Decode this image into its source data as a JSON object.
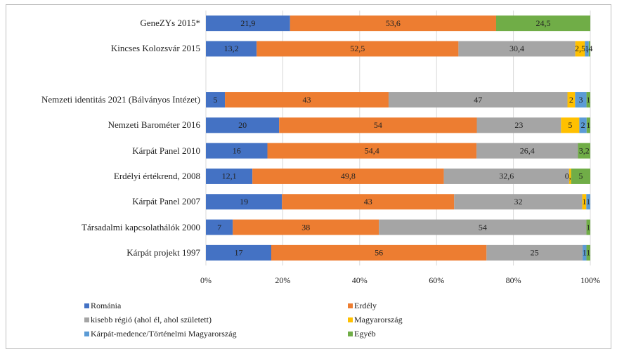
{
  "chart_data": {
    "type": "stacked_bar_100",
    "orientation": "horizontal",
    "categories": [
      "GeneZYs 2015*",
      "Kincses Kolozsvár 2015",
      null,
      "Nemzeti identitás 2021 (Bálványos Intézet)",
      "Nemzeti Barométer 2016",
      "Kárpát Panel 2010",
      "Erdélyi értékrend, 2008",
      "Kárpát Panel 2007",
      "Társadalmi kapcsolathálók 2000",
      "Kárpát projekt 1997"
    ],
    "series": [
      {
        "name": "Románia",
        "color": "#4472c4",
        "values": [
          21.9,
          13.2,
          null,
          5,
          20,
          16,
          12.1,
          19,
          7,
          17
        ],
        "value_labels": [
          "21,9",
          "13,2",
          null,
          "5",
          "20",
          "16",
          "12,1",
          "19",
          "7",
          "17"
        ]
      },
      {
        "name": "Erdély",
        "color": "#ed7d31",
        "values": [
          53.6,
          52.5,
          null,
          43,
          54,
          54.4,
          49.8,
          43,
          38,
          56
        ],
        "value_labels": [
          "53,6",
          "52,5",
          null,
          "43",
          "54",
          "54,4",
          "49,8",
          "43",
          "38",
          "56"
        ]
      },
      {
        "name": "kisebb régió (ahol él, ahol született)",
        "color": "#a5a5a5",
        "values": [
          null,
          30.4,
          null,
          47,
          23,
          26.4,
          32.6,
          32,
          54,
          25
        ],
        "value_labels": [
          null,
          "30,4",
          null,
          "47",
          "23",
          "26,4",
          "32,6",
          "32",
          "54",
          "25"
        ]
      },
      {
        "name": "Magyarország",
        "color": "#ffc000",
        "values": [
          null,
          2.5,
          null,
          2,
          5,
          null,
          0.5,
          1,
          null,
          null
        ],
        "value_labels": [
          null,
          "2,5",
          null,
          "2",
          "5",
          null,
          "0,5",
          "1",
          null,
          null
        ]
      },
      {
        "name": "Kárpát-medence/Történelmi Magyarország",
        "color": "#5b9bd5",
        "values": [
          null,
          1,
          null,
          3,
          2,
          null,
          null,
          1,
          null,
          1
        ],
        "value_labels": [
          null,
          "1",
          null,
          "3",
          "2",
          null,
          null,
          "1",
          null,
          "1"
        ]
      },
      {
        "name": "Egyéb",
        "color": "#70ad47",
        "values": [
          24.5,
          0.4,
          null,
          1,
          1,
          3.2,
          5,
          null,
          1,
          1
        ],
        "value_labels": [
          "24,5",
          ",4",
          null,
          "1",
          "1",
          "3,2",
          "5",
          null,
          "1",
          "1"
        ]
      }
    ],
    "xlim": [
      0,
      100
    ],
    "xticks": [
      {
        "value": 0,
        "label": "0%"
      },
      {
        "value": 20,
        "label": "20%"
      },
      {
        "value": 40,
        "label": "40%"
      },
      {
        "value": 60,
        "label": "60%"
      },
      {
        "value": 80,
        "label": "80%"
      },
      {
        "value": 100,
        "label": "100%"
      }
    ],
    "grid": true,
    "legend": "bottom"
  }
}
